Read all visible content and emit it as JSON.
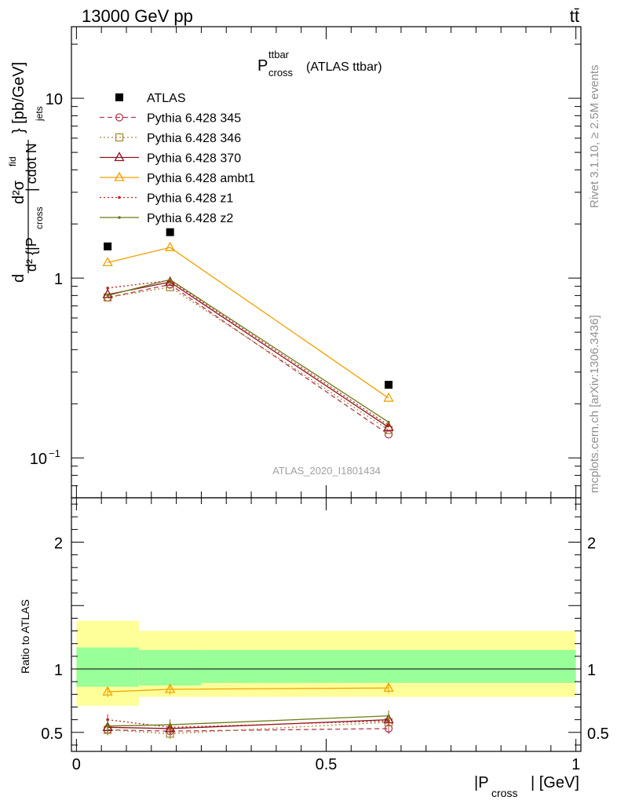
{
  "header": {
    "left": "13000 GeV pp",
    "right": "tt̄"
  },
  "side_labels": {
    "rivet": "Rivet 3.1.10, ≥ 2.5M events",
    "mcplots": "mcplots.cern.ch [arXiv:1306.3436]"
  },
  "watermark": "ATLAS_2020_I1801434",
  "chart_data": [
    {
      "type": "line",
      "panel": "main",
      "title": {
        "main": "P",
        "sup": "ttbar",
        "sub": "cross",
        "suffix": "(ATLAS ttbar)"
      },
      "ylabel": {
        "d2sigma": "d²σ",
        "sup": "fid",
        "den": "d² {|P",
        "den_sub": "cross",
        "den_mid": "| cdot N",
        "den_sub2": "jets",
        "unit": "} [pb/GeV]"
      },
      "yscale": "log",
      "ylim": [
        0.06,
        25
      ],
      "xlim": [
        -0.01,
        1.01
      ],
      "yticks": [
        {
          "v": 0.1,
          "label": "10",
          "sup": "−1"
        },
        {
          "v": 1,
          "label": "1",
          "sup": ""
        },
        {
          "v": 10,
          "label": "10",
          "sup": ""
        }
      ],
      "legend_position": "top-left",
      "x": [
        0.0625,
        0.1875,
        0.625
      ],
      "series": [
        {
          "name": "ATLAS",
          "color": "#000000",
          "style": "marker",
          "marker": "square-filled",
          "values": [
            1.5,
            1.8,
            0.255
          ]
        },
        {
          "name": "Pythia 6.428 345",
          "color": "#b5384f",
          "style": "dashed",
          "marker": "circle-open",
          "values": [
            0.78,
            0.92,
            0.135
          ]
        },
        {
          "name": "Pythia 6.428 346",
          "color": "#a88935",
          "style": "dotted",
          "marker": "square-open",
          "values": [
            0.78,
            0.89,
            0.143
          ]
        },
        {
          "name": "Pythia 6.428 370",
          "color": "#8b1320",
          "style": "solid",
          "marker": "triangle-open",
          "values": [
            0.81,
            0.95,
            0.148
          ]
        },
        {
          "name": "Pythia 6.428 ambt1",
          "color": "#f0a000",
          "style": "solid",
          "marker": "triangle-open",
          "values": [
            1.22,
            1.48,
            0.215
          ]
        },
        {
          "name": "Pythia 6.428 z1",
          "color": "#c0201b",
          "style": "dotted",
          "marker": "dot",
          "values": [
            0.88,
            0.97,
            0.152
          ]
        },
        {
          "name": "Pythia 6.428 z2",
          "color": "#6b7a12",
          "style": "solid",
          "marker": "dot",
          "values": [
            0.8,
            0.98,
            0.158
          ]
        }
      ]
    },
    {
      "type": "line",
      "panel": "ratio",
      "ylabel": "Ratio to ATLAS",
      "xlabel": {
        "pre": "|P",
        "sub": "cross",
        "post": "| [GeV]"
      },
      "ylim": [
        0.35,
        2.35
      ],
      "xlim": [
        -0.01,
        1.01
      ],
      "yticks": [
        {
          "v": 0.5,
          "label": "0.5"
        },
        {
          "v": 1,
          "label": "1"
        },
        {
          "v": 2,
          "label": "2"
        }
      ],
      "xticks": [
        {
          "v": 0,
          "label": "0"
        },
        {
          "v": 0.5,
          "label": "0.5"
        },
        {
          "v": 1,
          "label": "1"
        }
      ],
      "bands": [
        {
          "x0": 0,
          "x1": 0.125,
          "yellow": [
            0.71,
            1.38
          ],
          "green": [
            0.86,
            1.17
          ]
        },
        {
          "x0": 0.125,
          "x1": 0.25,
          "yellow": [
            0.78,
            1.3
          ],
          "green": [
            0.87,
            1.15
          ]
        },
        {
          "x0": 0.25,
          "x1": 1.0,
          "yellow": [
            0.78,
            1.3
          ],
          "green": [
            0.89,
            1.15
          ]
        }
      ],
      "x": [
        0.0625,
        0.1875,
        0.625
      ],
      "series": [
        {
          "name": "Pythia 6.428 345",
          "values": [
            0.52,
            0.51,
            0.53
          ]
        },
        {
          "name": "Pythia 6.428 346",
          "values": [
            0.52,
            0.49,
            0.58
          ]
        },
        {
          "name": "Pythia 6.428 370",
          "values": [
            0.54,
            0.53,
            0.6
          ]
        },
        {
          "name": "Pythia 6.428 ambt1",
          "values": [
            0.82,
            0.84,
            0.85
          ]
        },
        {
          "name": "Pythia 6.428 z1",
          "values": [
            0.6,
            0.54,
            0.59
          ]
        },
        {
          "name": "Pythia 6.428 z2",
          "values": [
            0.55,
            0.56,
            0.63
          ]
        }
      ]
    }
  ]
}
